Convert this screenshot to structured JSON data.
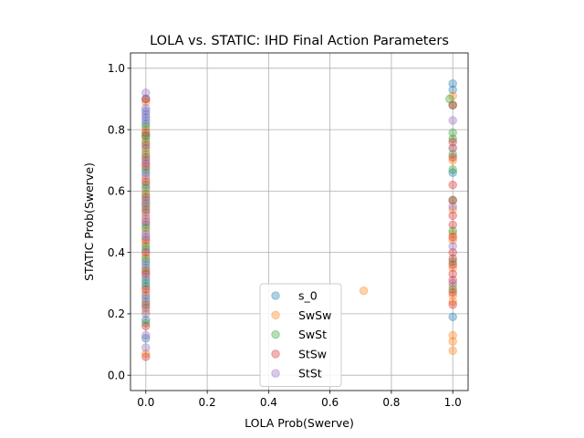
{
  "chart_data": {
    "type": "scatter",
    "title": "LOLA vs. STATIC: IHD Final Action Parameters",
    "xlabel": "LOLA Prob(Swerve)",
    "ylabel": "STATIC Prob(Swerve)",
    "xlim": [
      -0.05,
      1.05
    ],
    "ylim": [
      -0.05,
      1.05
    ],
    "xticks": [
      "0.0",
      "0.2",
      "0.4",
      "0.6",
      "0.8",
      "1.0"
    ],
    "yticks": [
      "0.0",
      "0.2",
      "0.4",
      "0.6",
      "0.8",
      "1.0"
    ],
    "grid": true,
    "legend_position": "bottom-center",
    "marker_alpha": 0.35,
    "series": [
      {
        "name": "s_0",
        "color": "#1f77b4",
        "points": [
          [
            0,
            0.12
          ],
          [
            0,
            0.18
          ],
          [
            0,
            0.22
          ],
          [
            0,
            0.26
          ],
          [
            0,
            0.29
          ],
          [
            0,
            0.31
          ],
          [
            0,
            0.33
          ],
          [
            0,
            0.37
          ],
          [
            0,
            0.41
          ],
          [
            0,
            0.45
          ],
          [
            0,
            0.49
          ],
          [
            0,
            0.53
          ],
          [
            0,
            0.57
          ],
          [
            0,
            0.61
          ],
          [
            0,
            0.66
          ],
          [
            0,
            0.7
          ],
          [
            0,
            0.74
          ],
          [
            0,
            0.78
          ],
          [
            0,
            0.82
          ],
          [
            0,
            0.84
          ],
          [
            0,
            0.86
          ],
          [
            0,
            0.9
          ],
          [
            1,
            0.95
          ],
          [
            1,
            0.93
          ],
          [
            1,
            0.66
          ],
          [
            1,
            0.19
          ]
        ]
      },
      {
        "name": "SwSw",
        "color": "#ff7f0e",
        "points": [
          [
            0,
            0.07
          ],
          [
            0,
            0.21
          ],
          [
            0,
            0.27
          ],
          [
            0,
            0.33
          ],
          [
            0,
            0.39
          ],
          [
            0,
            0.43
          ],
          [
            0,
            0.47
          ],
          [
            0,
            0.52
          ],
          [
            0,
            0.56
          ],
          [
            0,
            0.6
          ],
          [
            0,
            0.64
          ],
          [
            0,
            0.69
          ],
          [
            0,
            0.73
          ],
          [
            0,
            0.77
          ],
          [
            0,
            0.8
          ],
          [
            0,
            0.89
          ],
          [
            0.71,
            0.275
          ],
          [
            1,
            0.91
          ],
          [
            1,
            0.74
          ],
          [
            1,
            0.7
          ],
          [
            1,
            0.54
          ],
          [
            1,
            0.46
          ],
          [
            1,
            0.44
          ],
          [
            1,
            0.35
          ],
          [
            1,
            0.29
          ],
          [
            1,
            0.26
          ],
          [
            1,
            0.24
          ],
          [
            1,
            0.13
          ],
          [
            1,
            0.11
          ],
          [
            1,
            0.08
          ]
        ]
      },
      {
        "name": "SwSt",
        "color": "#2ca02c",
        "points": [
          [
            0,
            0.17
          ],
          [
            0,
            0.24
          ],
          [
            0,
            0.3
          ],
          [
            0,
            0.35
          ],
          [
            0,
            0.38
          ],
          [
            0,
            0.42
          ],
          [
            0,
            0.48
          ],
          [
            0,
            0.55
          ],
          [
            0,
            0.59
          ],
          [
            0,
            0.62
          ],
          [
            0,
            0.67
          ],
          [
            0,
            0.72
          ],
          [
            0,
            0.76
          ],
          [
            0,
            0.78
          ],
          [
            0,
            0.81
          ],
          [
            0.99,
            0.9
          ],
          [
            1,
            0.88
          ],
          [
            1,
            0.79
          ],
          [
            1,
            0.77
          ],
          [
            1,
            0.72
          ],
          [
            1,
            0.67
          ],
          [
            1,
            0.57
          ],
          [
            1,
            0.47
          ],
          [
            1,
            0.37
          ],
          [
            1,
            0.28
          ]
        ]
      },
      {
        "name": "StSw",
        "color": "#d62728",
        "points": [
          [
            0,
            0.06
          ],
          [
            0,
            0.16
          ],
          [
            0,
            0.23
          ],
          [
            0,
            0.28
          ],
          [
            0,
            0.34
          ],
          [
            0,
            0.4
          ],
          [
            0,
            0.44
          ],
          [
            0,
            0.5
          ],
          [
            0,
            0.54
          ],
          [
            0,
            0.58
          ],
          [
            0,
            0.63
          ],
          [
            0,
            0.68
          ],
          [
            0,
            0.71
          ],
          [
            0,
            0.75
          ],
          [
            0,
            0.79
          ],
          [
            0,
            0.9
          ],
          [
            1,
            0.88
          ],
          [
            1,
            0.76
          ],
          [
            1,
            0.71
          ],
          [
            1,
            0.62
          ],
          [
            1,
            0.57
          ],
          [
            1,
            0.52
          ],
          [
            1,
            0.49
          ],
          [
            1,
            0.45
          ],
          [
            1,
            0.4
          ],
          [
            1,
            0.38
          ],
          [
            1,
            0.36
          ],
          [
            1,
            0.33
          ],
          [
            1,
            0.31
          ],
          [
            1,
            0.27
          ],
          [
            1,
            0.23
          ]
        ]
      },
      {
        "name": "StSt",
        "color": "#9467bd",
        "points": [
          [
            0,
            0.09
          ],
          [
            0,
            0.13
          ],
          [
            0,
            0.2
          ],
          [
            0,
            0.25
          ],
          [
            0,
            0.32
          ],
          [
            0,
            0.36
          ],
          [
            0,
            0.46
          ],
          [
            0,
            0.51
          ],
          [
            0,
            0.56
          ],
          [
            0,
            0.65
          ],
          [
            0,
            0.69
          ],
          [
            0,
            0.83
          ],
          [
            0,
            0.85
          ],
          [
            0,
            0.87
          ],
          [
            0,
            0.92
          ],
          [
            1,
            0.83
          ],
          [
            1,
            0.74
          ],
          [
            1,
            0.55
          ],
          [
            1,
            0.42
          ],
          [
            1,
            0.3
          ]
        ]
      }
    ]
  }
}
